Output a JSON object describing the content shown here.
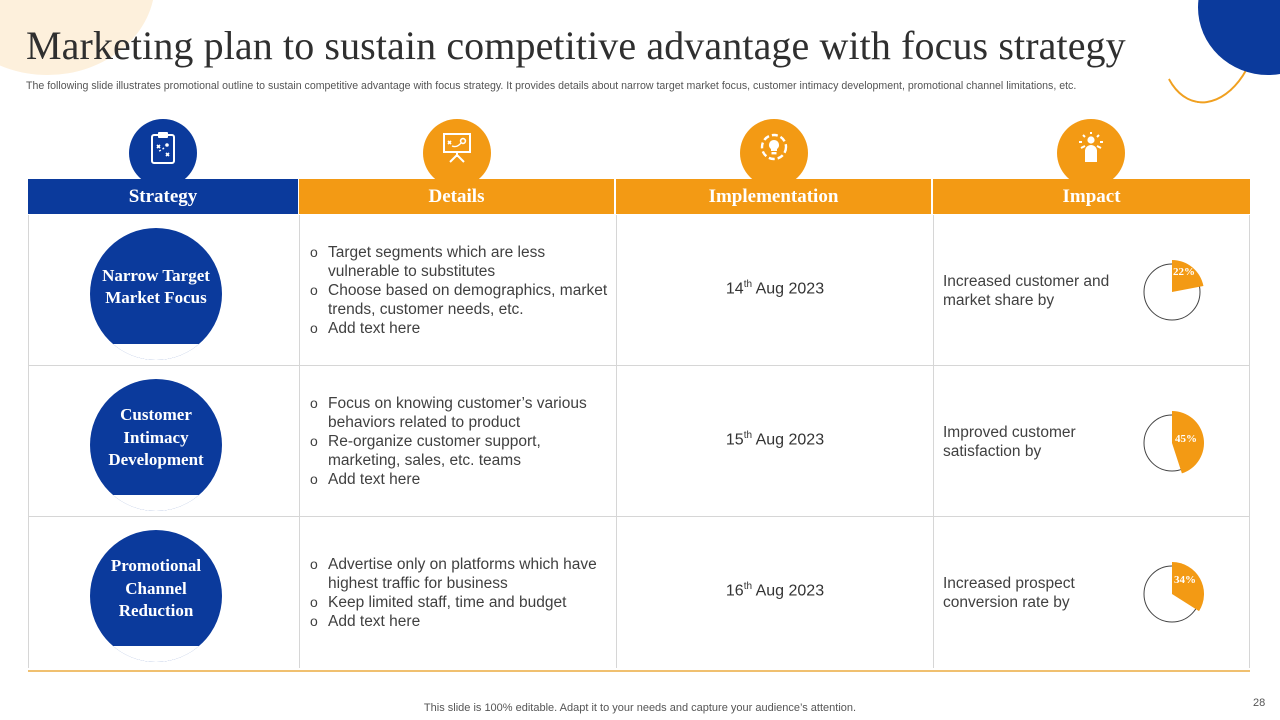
{
  "title": "Marketing plan to sustain competitive advantage with focus strategy",
  "subtitle": "The following slide illustrates promotional outline to sustain competitive advantage with focus strategy. It provides details about narrow target market focus, customer intimacy development, promotional channel limitations, etc.",
  "header_icons": [
    "clipboard-icon",
    "presentation-board-icon",
    "gear-bulb-icon",
    "idea-person-icon"
  ],
  "columns": {
    "strategy": "Strategy",
    "details": "Details",
    "implementation": "Implementation",
    "impact": "Impact"
  },
  "colors": {
    "blue": "#0b3a9c",
    "orange": "#f39a14"
  },
  "rows": [
    {
      "strategy": "Narrow Target Market Focus",
      "details": [
        "Target segments which are less vulnerable  to substitutes",
        "Choose based on demographics, market trends, customer needs, etc.",
        "Add text here"
      ],
      "impl_day": "14",
      "impl_suffix": "th",
      "impl_rest": " Aug 2023",
      "impact_text": "Increased customer and market share by",
      "impact_label": "22%",
      "impact_value": 22
    },
    {
      "strategy": "Customer Intimacy Development",
      "details": [
        "Focus on knowing customer’s various behaviors related to product",
        "Re-organize customer support, marketing, sales, etc. teams",
        "Add text here"
      ],
      "impl_day": "15",
      "impl_suffix": "th",
      "impl_rest": " Aug 2023",
      "impact_text": "Improved customer satisfaction by",
      "impact_label": "45%",
      "impact_value": 45
    },
    {
      "strategy": "Promotional Channel Reduction",
      "details": [
        "Advertise only on platforms which have highest traffic for business",
        "Keep limited staff, time and budget",
        "Add text here"
      ],
      "impl_day": "16",
      "impl_suffix": "th",
      "impl_rest": " Aug 2023",
      "impact_text": "Increased prospect conversion rate by",
      "impact_label": "34%",
      "impact_value": 34
    }
  ],
  "footer": "This slide is 100% editable. Adapt it to your needs and capture your audience’s attention.",
  "page_number": "28"
}
